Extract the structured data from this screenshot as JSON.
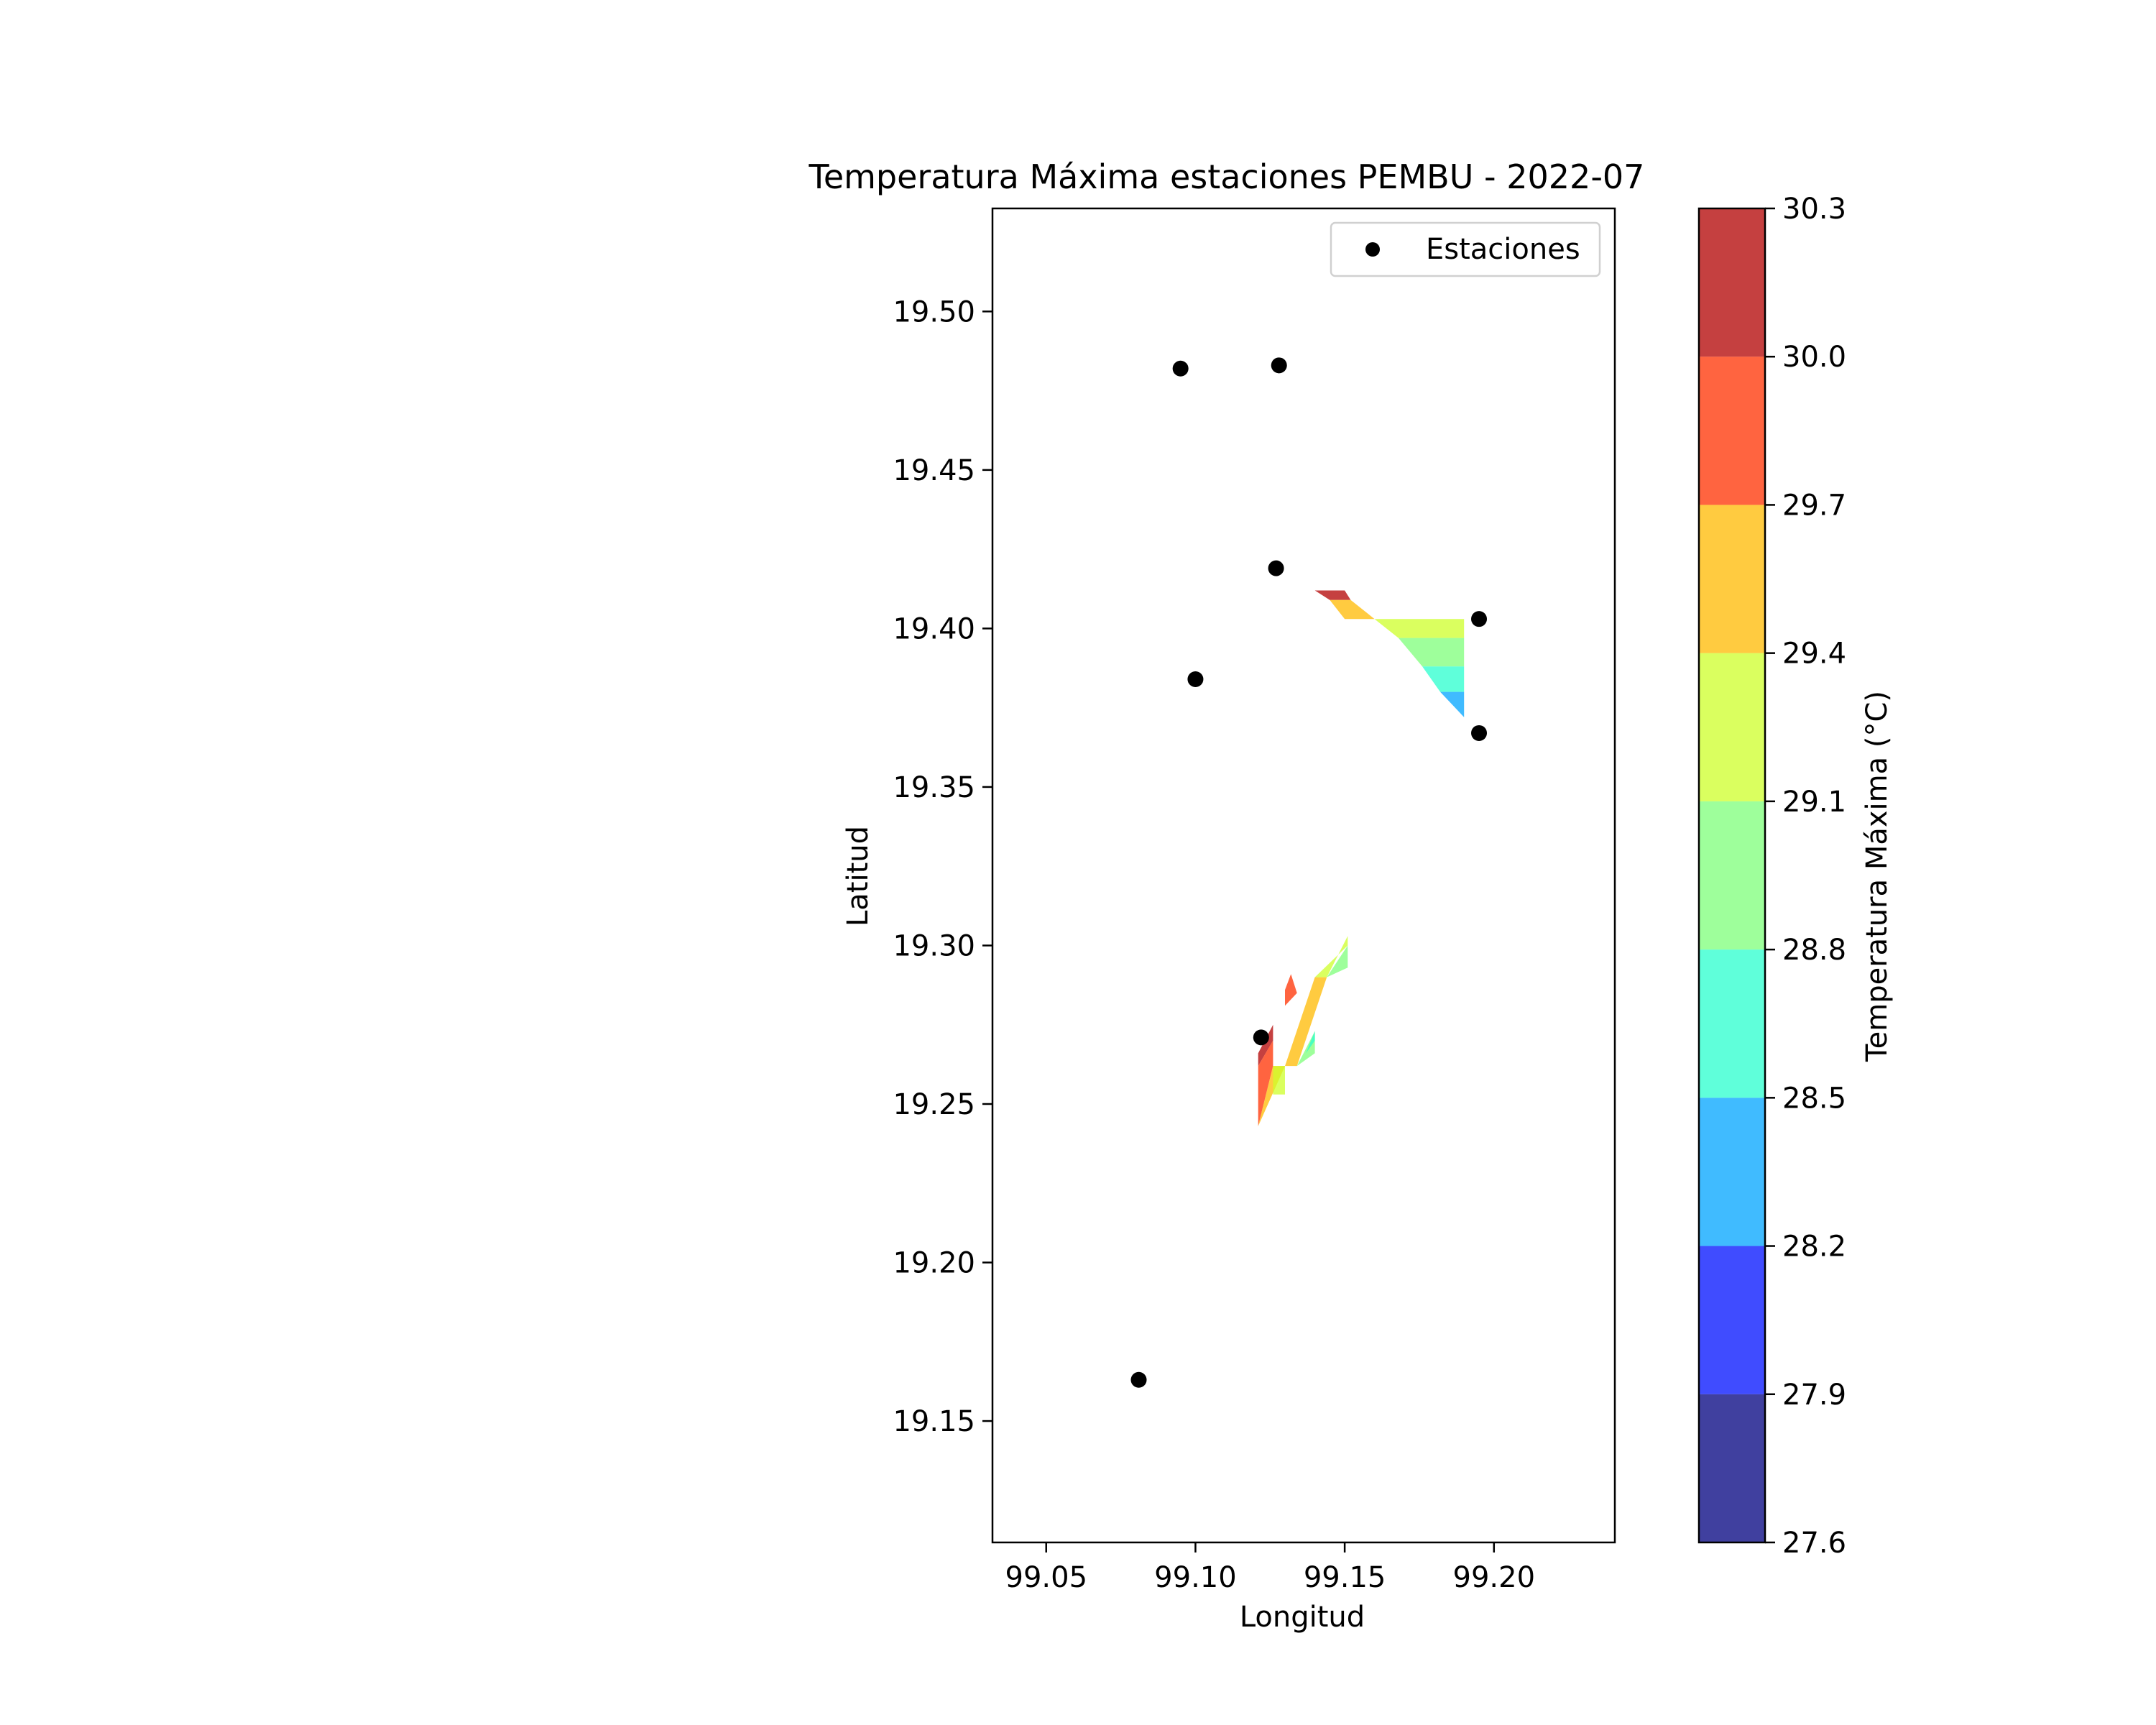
{
  "chart_data": {
    "type": "scatter",
    "title": "Temperatura Máxima estaciones PEMBU - 2022-07",
    "xlabel": "Longitud",
    "ylabel": "Latitud",
    "xlim": [
      99.032,
      99.2405
    ],
    "ylim": [
      19.1117,
      19.5325
    ],
    "xticks": [
      "99.05",
      "99.10",
      "99.15",
      "99.20"
    ],
    "yticks": [
      "19.15",
      "19.20",
      "19.25",
      "19.30",
      "19.35",
      "19.40",
      "19.45",
      "19.50"
    ],
    "grid": false,
    "legend": {
      "position": "upper right",
      "entries": [
        "Estaciones"
      ]
    },
    "series": [
      {
        "name": "Estaciones",
        "color": "#000000",
        "points": [
          {
            "x": 99.095,
            "y": 19.482
          },
          {
            "x": 99.128,
            "y": 19.483
          },
          {
            "x": 99.127,
            "y": 19.419
          },
          {
            "x": 99.195,
            "y": 19.403
          },
          {
            "x": 99.1,
            "y": 19.384
          },
          {
            "x": 99.195,
            "y": 19.367
          },
          {
            "x": 99.122,
            "y": 19.271
          },
          {
            "x": 99.081,
            "y": 19.163
          }
        ]
      }
    ],
    "contour": {
      "colormap": "jet",
      "alpha": 0.75,
      "levels": [
        27.6,
        27.9,
        28.2,
        28.5,
        28.8,
        29.1,
        29.4,
        29.7,
        30.0,
        30.3
      ],
      "level_colors": [
        "#00007f",
        "#0010ff",
        "#00a4ff",
        "#29ffce",
        "#7dff7a",
        "#ceff29",
        "#ffb900",
        "#ff3000",
        "#b20000"
      ],
      "patches": [
        {
          "level": 8,
          "points": [
            [
              99.14,
              19.412
            ],
            [
              99.15,
              19.412
            ],
            [
              99.152,
              19.409
            ],
            [
              99.145,
              19.409
            ]
          ]
        },
        {
          "level": 6,
          "points": [
            [
              99.145,
              19.409
            ],
            [
              99.152,
              19.409
            ],
            [
              99.16,
              19.403
            ],
            [
              99.15,
              19.403
            ]
          ]
        },
        {
          "level": 5,
          "points": [
            [
              99.15,
              19.403
            ],
            [
              99.19,
              19.403
            ],
            [
              99.19,
              19.397
            ],
            [
              99.168,
              19.397
            ],
            [
              99.16,
              19.403
            ]
          ]
        },
        {
          "level": 4,
          "points": [
            [
              99.168,
              19.397
            ],
            [
              99.19,
              19.397
            ],
            [
              99.19,
              19.388
            ],
            [
              99.176,
              19.388
            ]
          ]
        },
        {
          "level": 3,
          "points": [
            [
              99.176,
              19.388
            ],
            [
              99.19,
              19.388
            ],
            [
              99.19,
              19.38
            ],
            [
              99.182,
              19.38
            ]
          ]
        },
        {
          "level": 2,
          "points": [
            [
              99.182,
              19.38
            ],
            [
              99.19,
              19.38
            ],
            [
              99.19,
              19.372
            ]
          ]
        },
        {
          "level": 8,
          "points": [
            [
              99.121,
              19.262
            ],
            [
              99.126,
              19.27
            ],
            [
              99.126,
              19.275
            ],
            [
              99.121,
              19.266
            ]
          ]
        },
        {
          "level": 7,
          "points": [
            [
              99.121,
              19.243
            ],
            [
              99.126,
              19.262
            ],
            [
              99.126,
              19.27
            ],
            [
              99.121,
              19.262
            ]
          ]
        },
        {
          "level": 7,
          "points": [
            [
              99.13,
              19.281
            ],
            [
              99.134,
              19.285
            ],
            [
              99.132,
              19.291
            ],
            [
              99.13,
              19.286
            ]
          ]
        },
        {
          "level": 6,
          "points": [
            [
              99.121,
              19.243
            ],
            [
              99.13,
              19.262
            ],
            [
              99.14,
              19.29
            ],
            [
              99.144,
              19.29
            ],
            [
              99.134,
              19.262
            ],
            [
              99.126,
              19.262
            ]
          ]
        },
        {
          "level": 5,
          "points": [
            [
              99.126,
              19.253
            ],
            [
              99.13,
              19.253
            ],
            [
              99.13,
              19.262
            ],
            [
              99.126,
              19.262
            ]
          ]
        },
        {
          "level": 5,
          "points": [
            [
              99.14,
              19.29
            ],
            [
              99.151,
              19.3
            ],
            [
              99.151,
              19.303
            ],
            [
              99.144,
              19.29
            ]
          ]
        },
        {
          "level": 4,
          "points": [
            [
              99.134,
              19.262
            ],
            [
              99.14,
              19.273
            ],
            [
              99.14,
              19.266
            ]
          ]
        },
        {
          "level": 4,
          "points": [
            [
              99.144,
              19.29
            ],
            [
              99.151,
              19.293
            ],
            [
              99.151,
              19.3
            ]
          ]
        },
        {
          "level": 3,
          "points": [
            [
              99.137,
              19.266
            ],
            [
              99.14,
              19.27
            ],
            [
              99.14,
              19.273
            ]
          ]
        }
      ]
    },
    "colorbar": {
      "label": "Temperatura Máxima (°C)",
      "ticks": [
        "27.6",
        "27.9",
        "28.2",
        "28.5",
        "28.8",
        "29.1",
        "29.4",
        "29.7",
        "30.0",
        "30.3"
      ]
    }
  }
}
